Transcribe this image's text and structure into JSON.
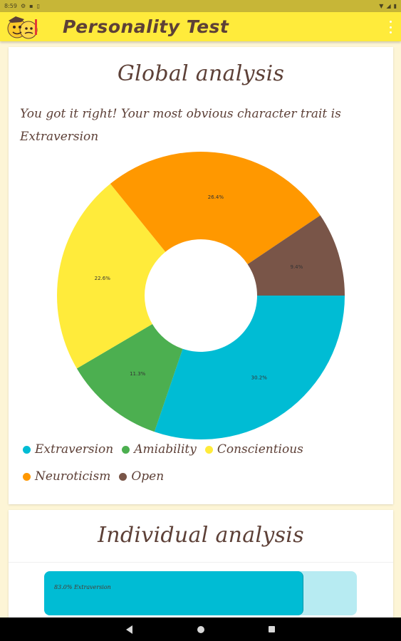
{
  "status_bar": {
    "time": "8:59",
    "icons_left": [
      "notification-icon",
      "sd-card-icon",
      "sim-icon"
    ],
    "icons_right": [
      "wifi-icon",
      "signal-icon",
      "battery-icon"
    ]
  },
  "app_bar": {
    "title": "Personality Test",
    "logo_icon": "emoji-faces-logo-icon",
    "menu_icon": "overflow-menu-icon"
  },
  "global_analysis": {
    "title": "Global analysis",
    "result_text": "You got it right! Your most obvious character trait is Extraversion"
  },
  "chart_data": {
    "type": "pie",
    "donut": true,
    "slices": [
      {
        "name": "Extraversion",
        "value": 30.2,
        "label": "30.2%",
        "color": "#00bcd4"
      },
      {
        "name": "Amiability",
        "value": 11.3,
        "label": "11.3%",
        "color": "#4caf50"
      },
      {
        "name": "Conscientious",
        "value": 22.6,
        "label": "22.6%",
        "color": "#ffeb3b"
      },
      {
        "name": "Neuroticism",
        "value": 26.4,
        "label": "26.4%",
        "color": "#ff9800"
      },
      {
        "name": "Open",
        "value": 9.4,
        "label": "9.4%",
        "color": "#795548"
      }
    ],
    "legend_position": "bottom"
  },
  "individual_analysis": {
    "title": "Individual analysis",
    "bars": [
      {
        "label": "83.0% Extraversion",
        "value": 83.0,
        "fill_color": "#00bcd4",
        "track_color": "#b7ebf2"
      }
    ]
  },
  "nav_bar": {
    "back_icon": "back-icon",
    "home_icon": "home-icon",
    "recents_icon": "recents-icon"
  }
}
